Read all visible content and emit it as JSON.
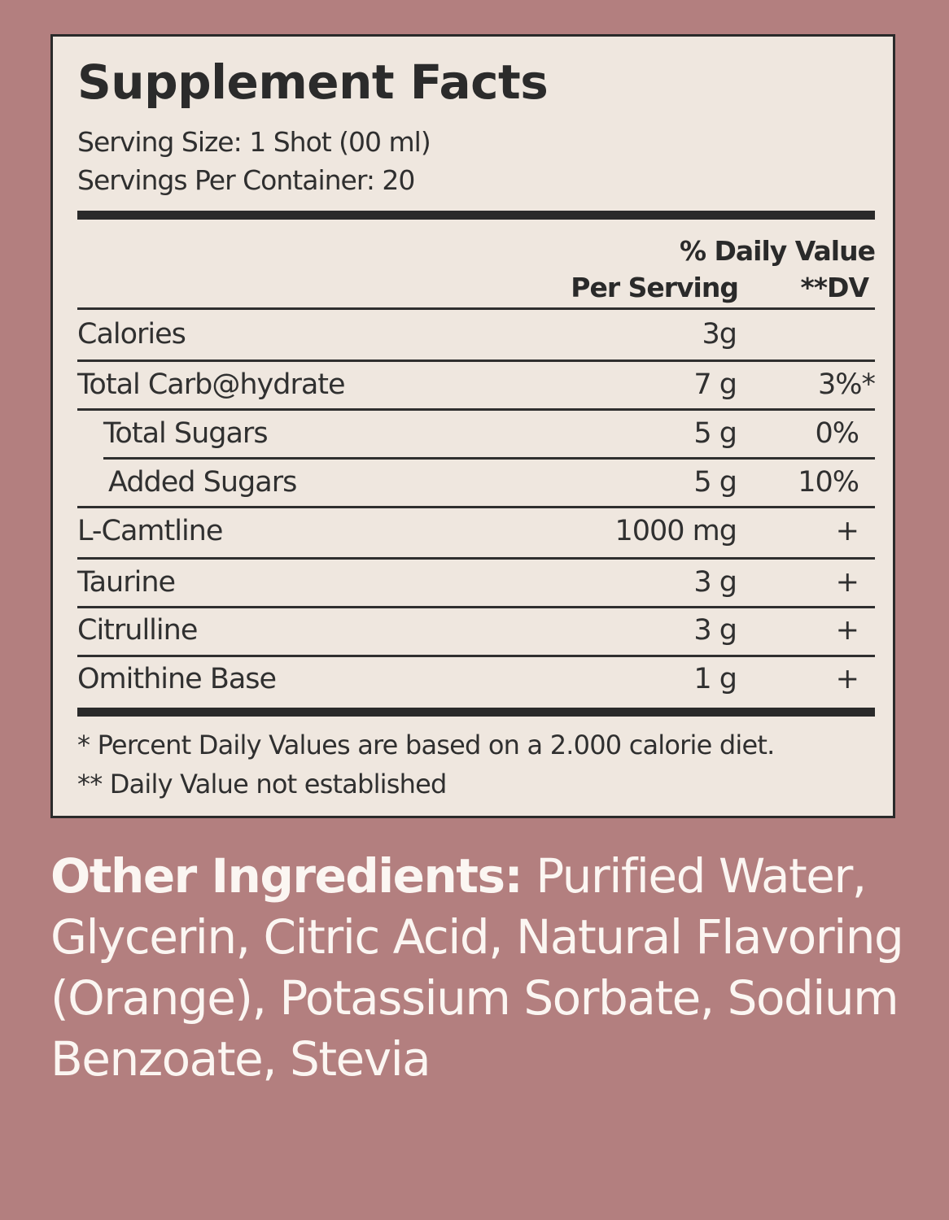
{
  "panel": {
    "title": "Supplement Facts",
    "serving_size": "Serving Size: 1 Shot (00 ml)",
    "servings_per_container": "Servings Per Container: 20",
    "header": {
      "daily_value": "% Daily Value",
      "per_serving": "Per Serving",
      "dv": "**DV"
    },
    "rows": [
      {
        "name": "Calories",
        "amount": "3g",
        "dv": ""
      },
      {
        "name": "Total Carb@hydrate",
        "amount": "7 g",
        "dv": "3%*"
      },
      {
        "name": "Total Sugars",
        "amount": "5 g",
        "dv": "0%"
      },
      {
        "name": "Added Sugars",
        "amount": "5 g",
        "dv": "10%"
      },
      {
        "name": "L-Camtline",
        "amount": "1000 mg",
        "dv": "+"
      },
      {
        "name": "Taurine",
        "amount": "3 g",
        "dv": "+"
      },
      {
        "name": "Citrulline",
        "amount": "3 g",
        "dv": "+"
      },
      {
        "name": "Omithine Base",
        "amount": "1 g",
        "dv": "+"
      }
    ],
    "footnotes": [
      "* Percent Daily Values are based on a 2.000 calorie diet.",
      "** Daily Value not established"
    ]
  },
  "other_ingredients": {
    "label": "Other Ingredients:",
    "text": " Purified Water, Glycerin, Citric Acid, Natural Flavoring (Orange), Potassium Sorbate, Sodium Benzoate, Stevia"
  },
  "colors": {
    "background": "#b37f7f",
    "panel": "#efe7df",
    "text": "#2b2b2b"
  }
}
